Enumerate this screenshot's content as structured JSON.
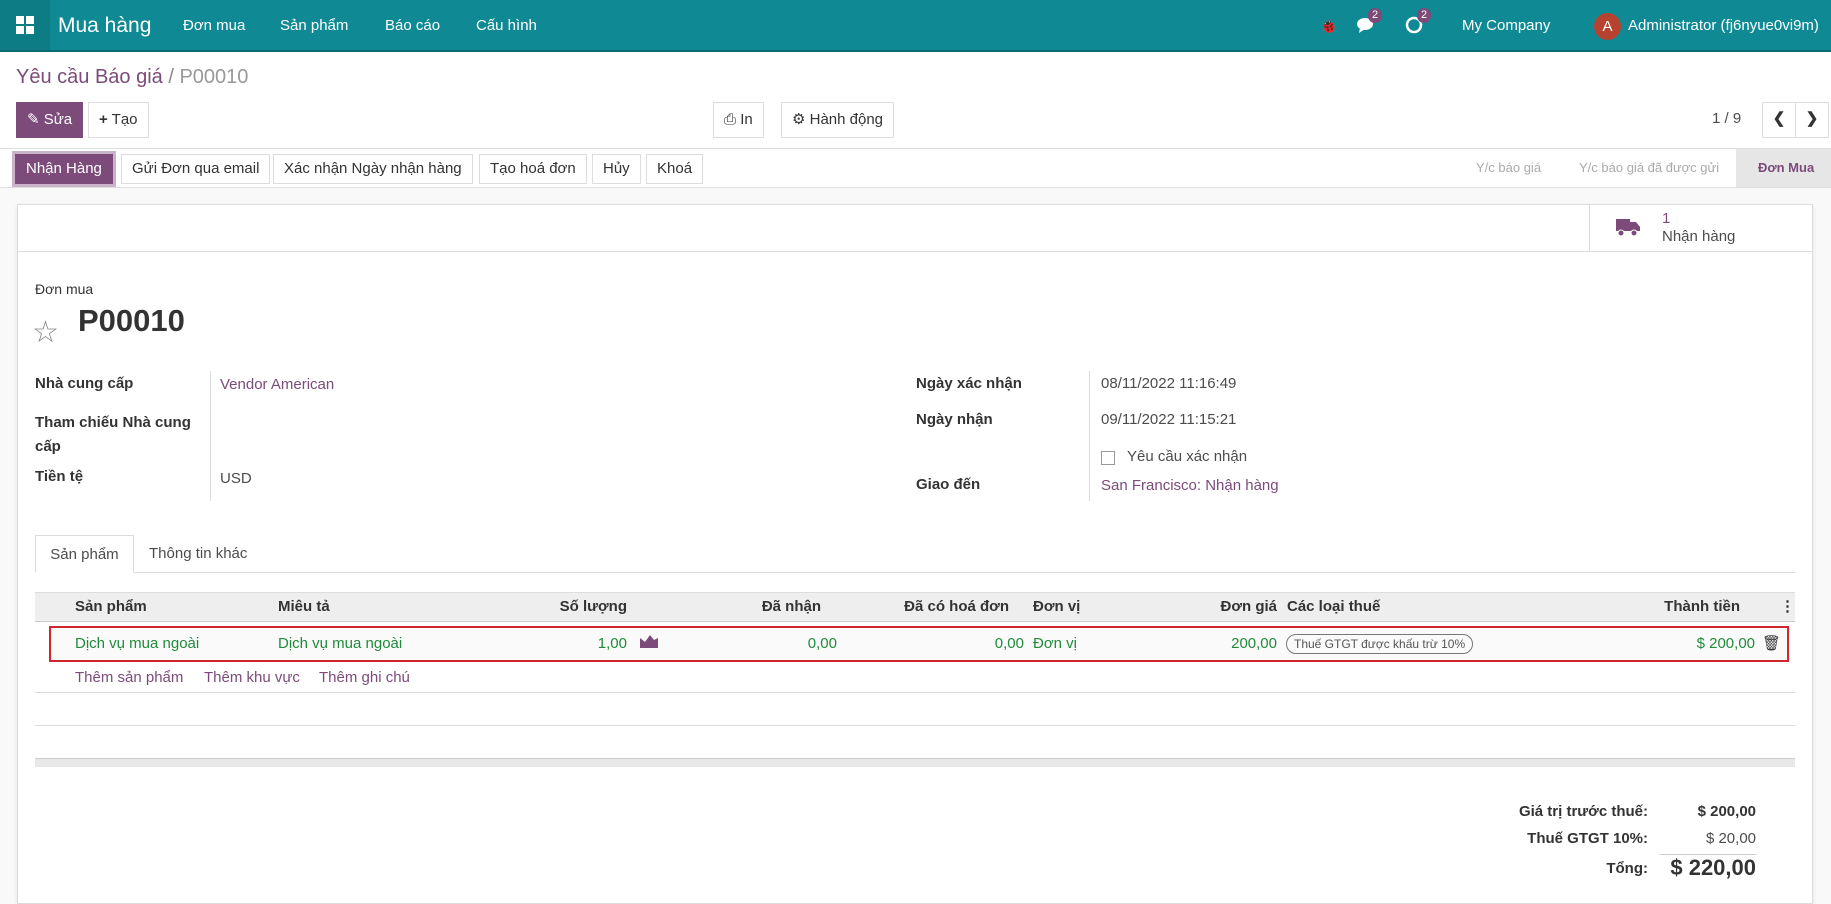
{
  "navbar": {
    "app_title": "Mua hàng",
    "menus": [
      "Đơn mua",
      "Sản phẩm",
      "Báo cáo",
      "Cấu hình"
    ],
    "messages_count": "2",
    "activities_count": "2",
    "company": "My Company",
    "avatar_letter": "A",
    "user": "Administrator (fj6nyue0vi9m)"
  },
  "breadcrumb": {
    "parent": "Yêu cầu Báo giá",
    "separator": "/",
    "current": "P00010"
  },
  "toolbar": {
    "edit": "Sửa",
    "create": "Tạo",
    "print": "In",
    "action": "Hành động",
    "pager": "1 / 9"
  },
  "status_buttons": [
    "Nhận Hàng",
    "Gửi Đơn qua email",
    "Xác nhận Ngày nhận hàng",
    "Tạo hoá đơn",
    "Hủy",
    "Khoá"
  ],
  "stages": [
    "Y/c báo giá",
    "Y/c báo giá đã được gửi",
    "Đơn Mua"
  ],
  "stat_button": {
    "count": "1",
    "label": "Nhận hàng"
  },
  "form": {
    "type_label": "Đơn mua",
    "name": "P00010",
    "vendor_label": "Nhà cung cấp",
    "vendor": "Vendor American",
    "vendor_ref_label": "Tham chiếu Nhà cung cấp",
    "currency_label": "Tiền tệ",
    "currency": "USD",
    "confirm_date_label": "Ngày xác nhận",
    "confirm_date": "08/11/2022 11:16:49",
    "receipt_date_label": "Ngày nhận",
    "receipt_date": "09/11/2022 11:15:21",
    "ask_confirm": "Yêu cầu xác nhận",
    "deliver_to_label": "Giao đến",
    "deliver_to": "San Francisco: Nhận hàng"
  },
  "tabs": [
    "Sản phẩm",
    "Thông tin khác"
  ],
  "table": {
    "headers": [
      "Sản phẩm",
      "Miêu tả",
      "Số lượng",
      "Đã nhận",
      "Đã có hoá đơn",
      "Đơn vị",
      "Đơn giá",
      "Các loại thuế",
      "Thành tiền"
    ],
    "rows": [
      {
        "product": "Dịch vụ mua ngoài",
        "description": "Dịch vụ mua ngoài",
        "qty": "1,00",
        "received": "0,00",
        "invoiced": "0,00",
        "uom": "Đơn vị",
        "price": "200,00",
        "tax": "Thuế GTGT được khấu trừ 10%",
        "subtotal": "$ 200,00"
      }
    ],
    "add_links": [
      "Thêm sản phẩm",
      "Thêm khu vực",
      "Thêm ghi chú"
    ]
  },
  "totals": {
    "untaxed_label": "Giá trị trước thuế:",
    "untaxed": "$ 200,00",
    "tax_label": "Thuế GTGT 10%:",
    "tax": "$ 20,00",
    "total_label": "Tổng:",
    "total": "$ 220,00"
  },
  "colors": {
    "navbar": "#0f8a94",
    "primary": "#7c4b7a",
    "highlight_border": "#d0262d",
    "green_text": "#218a3a"
  }
}
